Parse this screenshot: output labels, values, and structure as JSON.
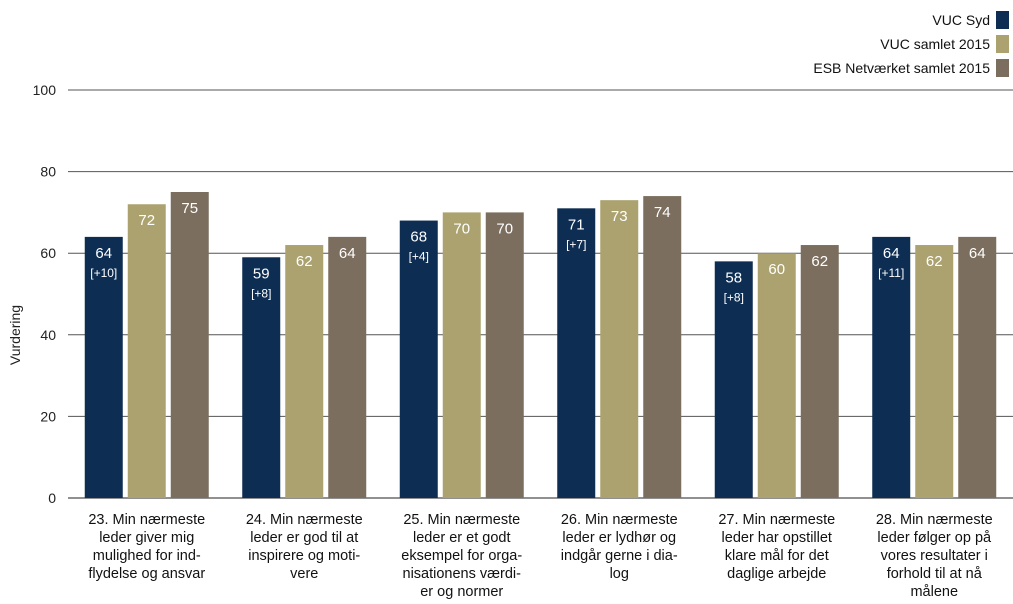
{
  "chart_data": {
    "type": "bar",
    "ylabel": "Vurdering",
    "ylim": [
      0,
      100
    ],
    "yticks": [
      0,
      20,
      40,
      60,
      80,
      100
    ],
    "legend_position": "top-right",
    "categories": [
      [
        "23. Min nærmeste",
        "leder giver mig",
        "mulighed for ind-",
        "flydelse og ansvar"
      ],
      [
        "24. Min nærmeste",
        "leder er god til at",
        "inspirere og moti-",
        "vere"
      ],
      [
        "25. Min nærmeste",
        "leder er et godt",
        "eksempel for orga-",
        "nisationens værdi-",
        "er og normer"
      ],
      [
        "26. Min nærmeste",
        "leder er lydhør og",
        "indgår gerne i dia-",
        "log"
      ],
      [
        "27. Min nærmeste",
        "leder har opstillet",
        "klare mål for det",
        "daglige arbejde"
      ],
      [
        "28. Min nærmeste",
        "leder følger op på",
        "vores resultater i",
        "forhold til at nå",
        "målene"
      ]
    ],
    "series": [
      {
        "name": "VUC Syd",
        "color": "#0d2d52",
        "values": [
          64,
          59,
          68,
          71,
          58,
          64
        ],
        "diffs": [
          "[+10]",
          "[+8]",
          "[+4]",
          "[+7]",
          "[+8]",
          "[+11]"
        ]
      },
      {
        "name": "VUC samlet 2015",
        "color": "#aba26f",
        "values": [
          72,
          62,
          70,
          73,
          60,
          62
        ]
      },
      {
        "name": "ESB Netværket samlet 2015",
        "color": "#7b6e5e",
        "values": [
          75,
          64,
          70,
          74,
          62,
          64
        ]
      }
    ]
  }
}
